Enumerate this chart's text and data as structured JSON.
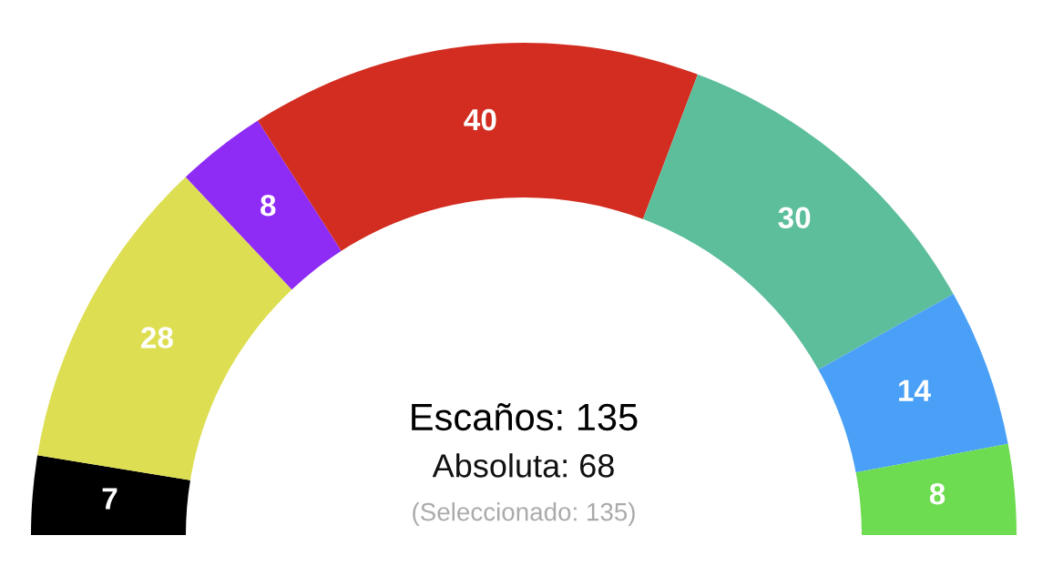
{
  "chart_data": {
    "type": "donut",
    "categories": [
      null,
      null,
      null,
      null,
      null,
      null,
      null
    ],
    "values": [
      7,
      28,
      8,
      40,
      30,
      14,
      8
    ],
    "colors": [
      "#000000",
      "#dede52",
      "#8e2cf5",
      "#d22d20",
      "#5dbe9b",
      "#4aa0f7",
      "#6ddc50"
    ],
    "data_labels": true,
    "annotations": [
      "Escaños: 135",
      "Absoluta: 68",
      "(Seleccionado: 135)"
    ]
  }
}
